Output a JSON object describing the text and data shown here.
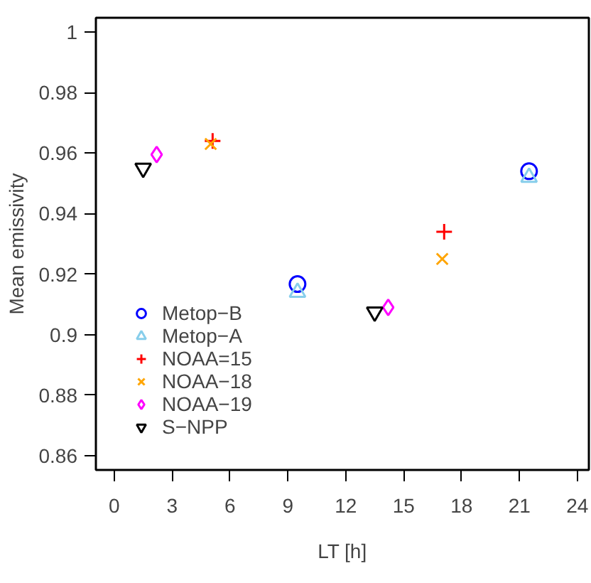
{
  "chart_data": {
    "type": "scatter",
    "xlabel": "LT [h]",
    "ylabel": "Mean emissivity",
    "xlim": [
      -0.95,
      24.6
    ],
    "ylim": [
      0.8553,
      1.0047
    ],
    "xticks": [
      0,
      3,
      6,
      9,
      12,
      15,
      18,
      21,
      24
    ],
    "yticks": [
      0.86,
      0.88,
      0.9,
      0.92,
      0.94,
      0.96,
      0.98,
      1
    ],
    "grid": false,
    "legend": "left",
    "series": [
      {
        "name": "Metop−B",
        "color": "#0000ff",
        "marker": "circle",
        "x": [
          9.5,
          21.5
        ],
        "values": [
          0.9167,
          0.954
        ]
      },
      {
        "name": "Metop−A",
        "color": "#87ceeb",
        "marker": "triangle",
        "x": [
          9.5,
          21.5
        ],
        "values": [
          0.914,
          0.952
        ]
      },
      {
        "name": "NOAA=15",
        "color": "#ff0000",
        "marker": "cross",
        "x": [
          5.1,
          17.1
        ],
        "values": [
          0.964,
          0.934
        ]
      },
      {
        "name": "NOAA−18",
        "color": "#ffa500",
        "marker": "x",
        "x": [
          5.0,
          17.0
        ],
        "values": [
          0.963,
          0.925
        ]
      },
      {
        "name": "NOAA−19",
        "color": "#ff00ff",
        "marker": "diamond",
        "x": [
          2.2,
          14.2
        ],
        "values": [
          0.9595,
          0.909
        ]
      },
      {
        "name": "S−NPP",
        "color": "#000000",
        "x": [
          1.5,
          13.5
        ],
        "values": [
          0.955,
          0.9075
        ]
      }
    ]
  }
}
